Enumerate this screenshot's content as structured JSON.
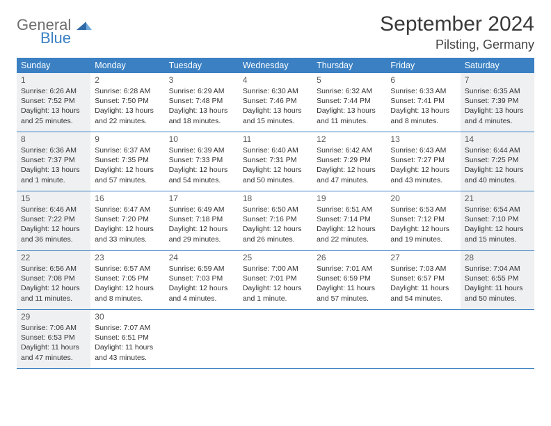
{
  "brand": {
    "word1": "General",
    "word2": "Blue"
  },
  "title": "September 2024",
  "location": "Pilsting, Germany",
  "colors": {
    "header_bg": "#3a80c3",
    "header_text": "#ffffff",
    "rule": "#3a80c3",
    "shade": "#eef0f1",
    "body_text": "#333333",
    "logo_grey": "#6e6e6e",
    "logo_blue": "#3a80c3"
  },
  "dow": [
    "Sunday",
    "Monday",
    "Tuesday",
    "Wednesday",
    "Thursday",
    "Friday",
    "Saturday"
  ],
  "weeks": [
    [
      {
        "n": "1",
        "shaded": true,
        "sr": "Sunrise: 6:26 AM",
        "ss": "Sunset: 7:52 PM",
        "d1": "Daylight: 13 hours",
        "d2": "and 25 minutes."
      },
      {
        "n": "2",
        "shaded": false,
        "sr": "Sunrise: 6:28 AM",
        "ss": "Sunset: 7:50 PM",
        "d1": "Daylight: 13 hours",
        "d2": "and 22 minutes."
      },
      {
        "n": "3",
        "shaded": false,
        "sr": "Sunrise: 6:29 AM",
        "ss": "Sunset: 7:48 PM",
        "d1": "Daylight: 13 hours",
        "d2": "and 18 minutes."
      },
      {
        "n": "4",
        "shaded": false,
        "sr": "Sunrise: 6:30 AM",
        "ss": "Sunset: 7:46 PM",
        "d1": "Daylight: 13 hours",
        "d2": "and 15 minutes."
      },
      {
        "n": "5",
        "shaded": false,
        "sr": "Sunrise: 6:32 AM",
        "ss": "Sunset: 7:44 PM",
        "d1": "Daylight: 13 hours",
        "d2": "and 11 minutes."
      },
      {
        "n": "6",
        "shaded": false,
        "sr": "Sunrise: 6:33 AM",
        "ss": "Sunset: 7:41 PM",
        "d1": "Daylight: 13 hours",
        "d2": "and 8 minutes."
      },
      {
        "n": "7",
        "shaded": true,
        "sr": "Sunrise: 6:35 AM",
        "ss": "Sunset: 7:39 PM",
        "d1": "Daylight: 13 hours",
        "d2": "and 4 minutes."
      }
    ],
    [
      {
        "n": "8",
        "shaded": true,
        "sr": "Sunrise: 6:36 AM",
        "ss": "Sunset: 7:37 PM",
        "d1": "Daylight: 13 hours",
        "d2": "and 1 minute."
      },
      {
        "n": "9",
        "shaded": false,
        "sr": "Sunrise: 6:37 AM",
        "ss": "Sunset: 7:35 PM",
        "d1": "Daylight: 12 hours",
        "d2": "and 57 minutes."
      },
      {
        "n": "10",
        "shaded": false,
        "sr": "Sunrise: 6:39 AM",
        "ss": "Sunset: 7:33 PM",
        "d1": "Daylight: 12 hours",
        "d2": "and 54 minutes."
      },
      {
        "n": "11",
        "shaded": false,
        "sr": "Sunrise: 6:40 AM",
        "ss": "Sunset: 7:31 PM",
        "d1": "Daylight: 12 hours",
        "d2": "and 50 minutes."
      },
      {
        "n": "12",
        "shaded": false,
        "sr": "Sunrise: 6:42 AM",
        "ss": "Sunset: 7:29 PM",
        "d1": "Daylight: 12 hours",
        "d2": "and 47 minutes."
      },
      {
        "n": "13",
        "shaded": false,
        "sr": "Sunrise: 6:43 AM",
        "ss": "Sunset: 7:27 PM",
        "d1": "Daylight: 12 hours",
        "d2": "and 43 minutes."
      },
      {
        "n": "14",
        "shaded": true,
        "sr": "Sunrise: 6:44 AM",
        "ss": "Sunset: 7:25 PM",
        "d1": "Daylight: 12 hours",
        "d2": "and 40 minutes."
      }
    ],
    [
      {
        "n": "15",
        "shaded": true,
        "sr": "Sunrise: 6:46 AM",
        "ss": "Sunset: 7:22 PM",
        "d1": "Daylight: 12 hours",
        "d2": "and 36 minutes."
      },
      {
        "n": "16",
        "shaded": false,
        "sr": "Sunrise: 6:47 AM",
        "ss": "Sunset: 7:20 PM",
        "d1": "Daylight: 12 hours",
        "d2": "and 33 minutes."
      },
      {
        "n": "17",
        "shaded": false,
        "sr": "Sunrise: 6:49 AM",
        "ss": "Sunset: 7:18 PM",
        "d1": "Daylight: 12 hours",
        "d2": "and 29 minutes."
      },
      {
        "n": "18",
        "shaded": false,
        "sr": "Sunrise: 6:50 AM",
        "ss": "Sunset: 7:16 PM",
        "d1": "Daylight: 12 hours",
        "d2": "and 26 minutes."
      },
      {
        "n": "19",
        "shaded": false,
        "sr": "Sunrise: 6:51 AM",
        "ss": "Sunset: 7:14 PM",
        "d1": "Daylight: 12 hours",
        "d2": "and 22 minutes."
      },
      {
        "n": "20",
        "shaded": false,
        "sr": "Sunrise: 6:53 AM",
        "ss": "Sunset: 7:12 PM",
        "d1": "Daylight: 12 hours",
        "d2": "and 19 minutes."
      },
      {
        "n": "21",
        "shaded": true,
        "sr": "Sunrise: 6:54 AM",
        "ss": "Sunset: 7:10 PM",
        "d1": "Daylight: 12 hours",
        "d2": "and 15 minutes."
      }
    ],
    [
      {
        "n": "22",
        "shaded": true,
        "sr": "Sunrise: 6:56 AM",
        "ss": "Sunset: 7:08 PM",
        "d1": "Daylight: 12 hours",
        "d2": "and 11 minutes."
      },
      {
        "n": "23",
        "shaded": false,
        "sr": "Sunrise: 6:57 AM",
        "ss": "Sunset: 7:05 PM",
        "d1": "Daylight: 12 hours",
        "d2": "and 8 minutes."
      },
      {
        "n": "24",
        "shaded": false,
        "sr": "Sunrise: 6:59 AM",
        "ss": "Sunset: 7:03 PM",
        "d1": "Daylight: 12 hours",
        "d2": "and 4 minutes."
      },
      {
        "n": "25",
        "shaded": false,
        "sr": "Sunrise: 7:00 AM",
        "ss": "Sunset: 7:01 PM",
        "d1": "Daylight: 12 hours",
        "d2": "and 1 minute."
      },
      {
        "n": "26",
        "shaded": false,
        "sr": "Sunrise: 7:01 AM",
        "ss": "Sunset: 6:59 PM",
        "d1": "Daylight: 11 hours",
        "d2": "and 57 minutes."
      },
      {
        "n": "27",
        "shaded": false,
        "sr": "Sunrise: 7:03 AM",
        "ss": "Sunset: 6:57 PM",
        "d1": "Daylight: 11 hours",
        "d2": "and 54 minutes."
      },
      {
        "n": "28",
        "shaded": true,
        "sr": "Sunrise: 7:04 AM",
        "ss": "Sunset: 6:55 PM",
        "d1": "Daylight: 11 hours",
        "d2": "and 50 minutes."
      }
    ],
    [
      {
        "n": "29",
        "shaded": true,
        "sr": "Sunrise: 7:06 AM",
        "ss": "Sunset: 6:53 PM",
        "d1": "Daylight: 11 hours",
        "d2": "and 47 minutes."
      },
      {
        "n": "30",
        "shaded": false,
        "sr": "Sunrise: 7:07 AM",
        "ss": "Sunset: 6:51 PM",
        "d1": "Daylight: 11 hours",
        "d2": "and 43 minutes."
      },
      {
        "empty": true
      },
      {
        "empty": true
      },
      {
        "empty": true
      },
      {
        "empty": true
      },
      {
        "empty": true
      }
    ]
  ]
}
